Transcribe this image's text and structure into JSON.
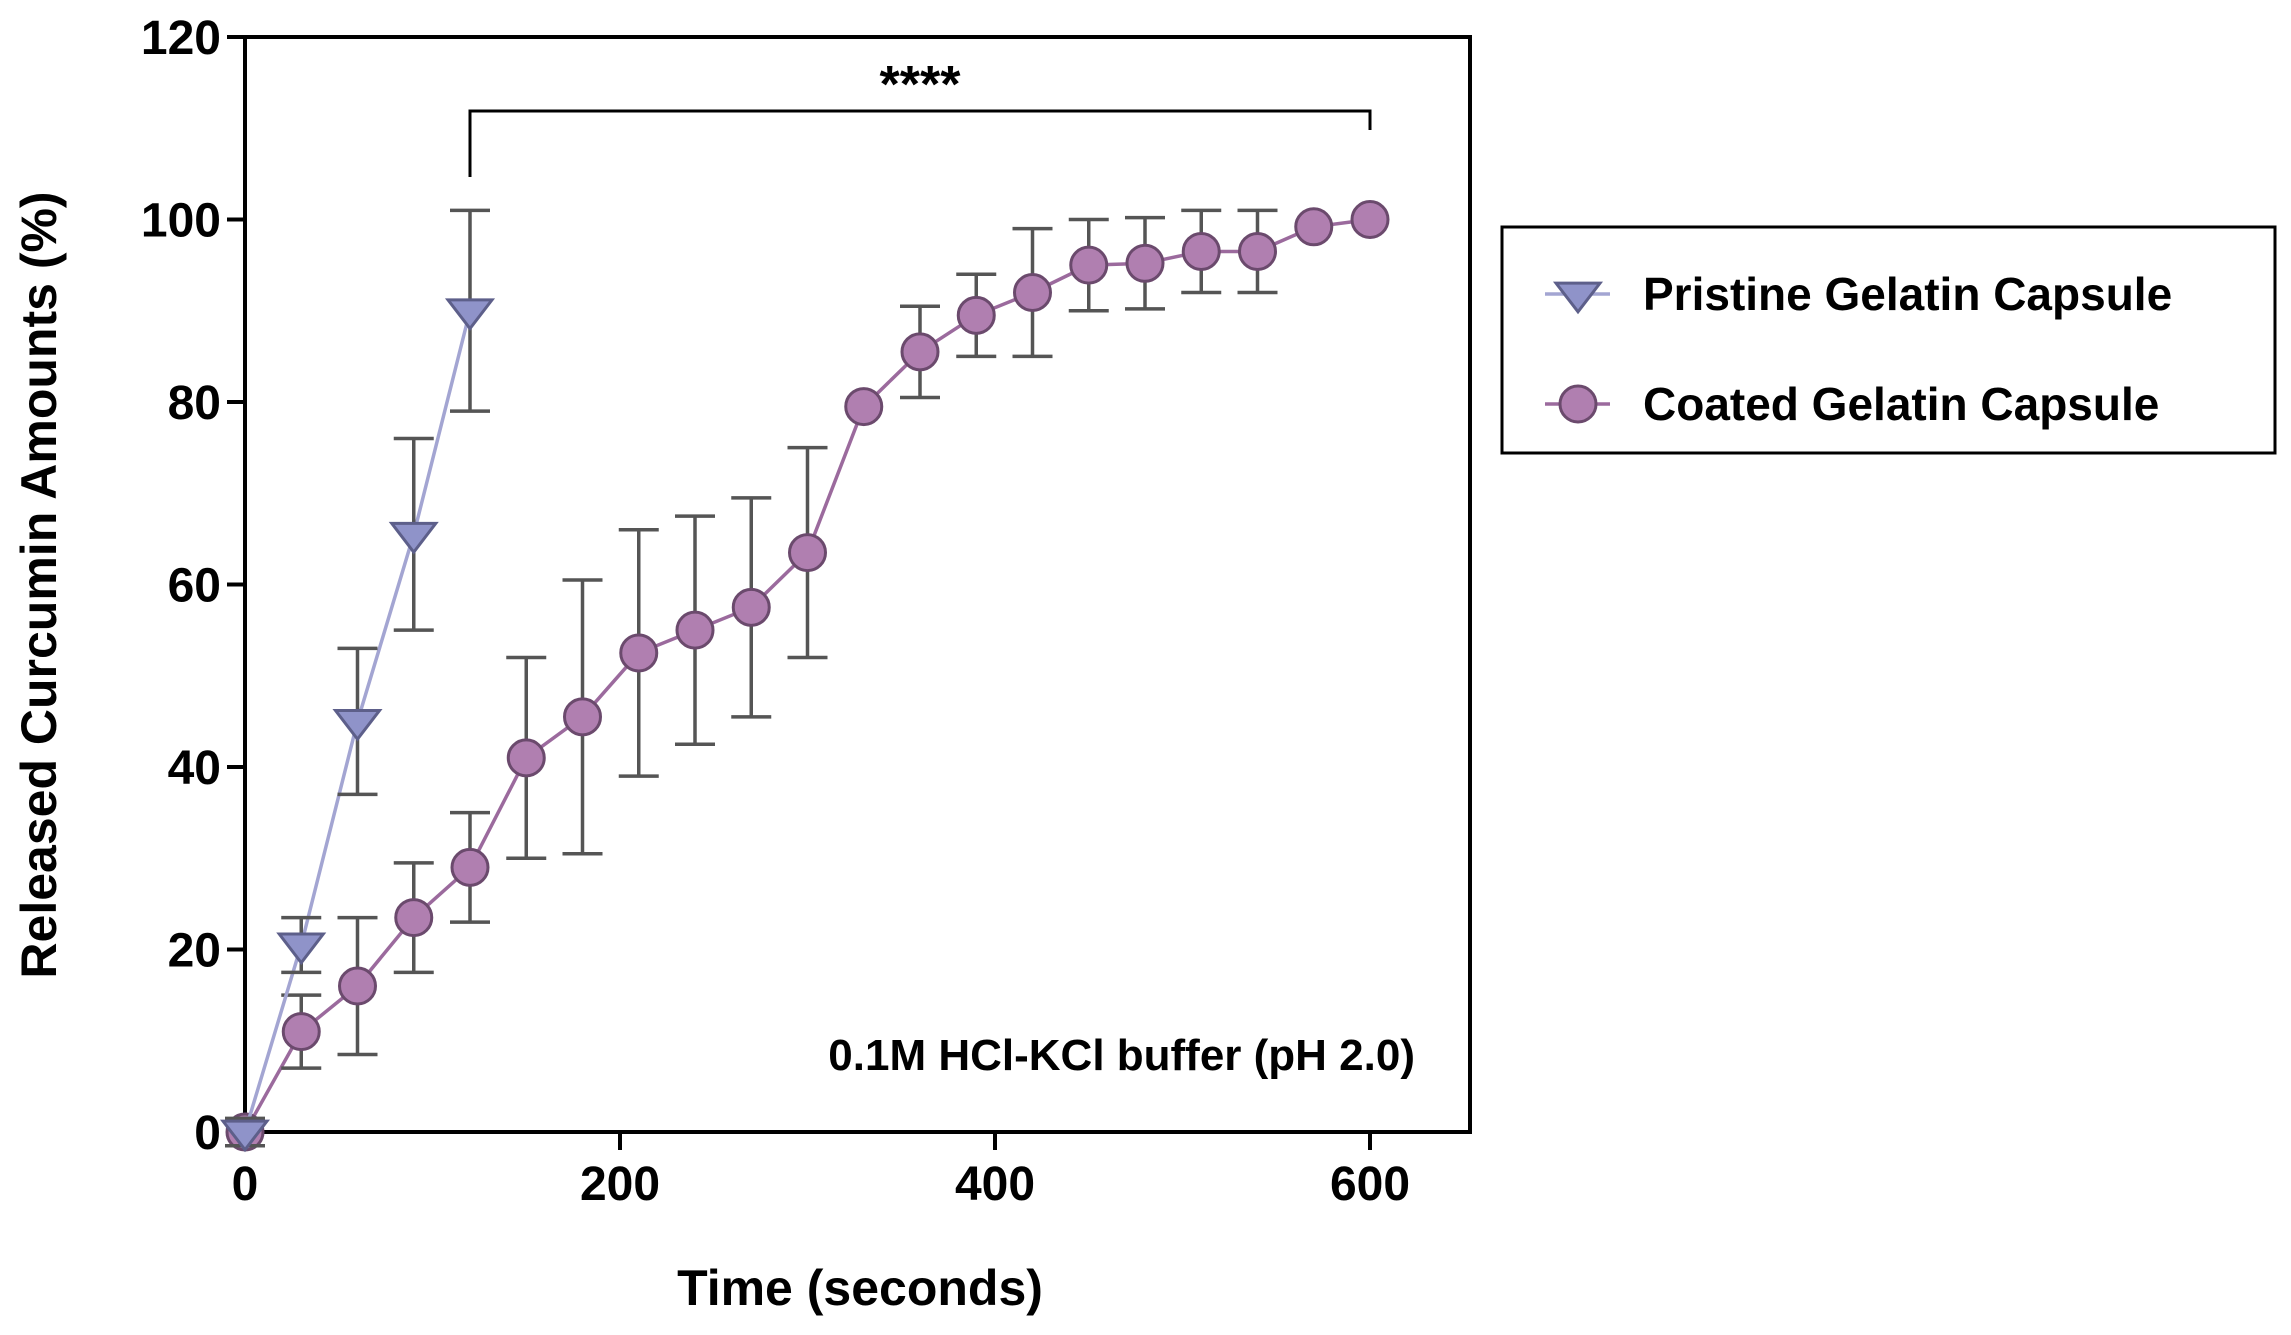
{
  "chart_data": {
    "type": "line",
    "title": "",
    "xlabel": "Time (seconds)",
    "ylabel": "Released Curcumin Amounts (%)",
    "xlim": [
      0,
      650
    ],
    "ylim": [
      0,
      120
    ],
    "xticks": [
      0,
      200,
      400,
      600
    ],
    "yticks": [
      0,
      20,
      40,
      60,
      80,
      100,
      120
    ],
    "annotation": "0.1M HCl-KCl buffer (pH 2.0)",
    "significance": {
      "label": "****",
      "x_start": 120,
      "x_end": 600
    },
    "legend_position": "right",
    "series": [
      {
        "name": "Pristine Gelatin Capsule",
        "marker": "triangle-down",
        "color": "#8f93c9",
        "line_color": "#a3a5d2",
        "x": [
          0,
          30,
          60,
          90,
          120
        ],
        "values": [
          0,
          20.5,
          45,
          65.5,
          90
        ],
        "errors": [
          1.5,
          3,
          8,
          10.5,
          11
        ]
      },
      {
        "name": "Coated Gelatin Capsule",
        "marker": "circle",
        "color": "#b07fb0",
        "line_color": "#9b6a9d",
        "x": [
          0,
          30,
          60,
          90,
          120,
          150,
          180,
          210,
          240,
          270,
          300,
          330,
          360,
          390,
          420,
          450,
          480,
          510,
          540,
          570,
          600
        ],
        "values": [
          0,
          11,
          16,
          23.5,
          29,
          41,
          45.5,
          52.5,
          55,
          57.5,
          63.5,
          79.5,
          85.5,
          89.5,
          92,
          95,
          95.2,
          96.5,
          96.5,
          99.2,
          100
        ],
        "errors": [
          0,
          4,
          7.5,
          6,
          6,
          11,
          15,
          13.5,
          12.5,
          12,
          11.5,
          0,
          5,
          4.5,
          7,
          5,
          5,
          4.5,
          4.5,
          0,
          0
        ]
      }
    ]
  }
}
